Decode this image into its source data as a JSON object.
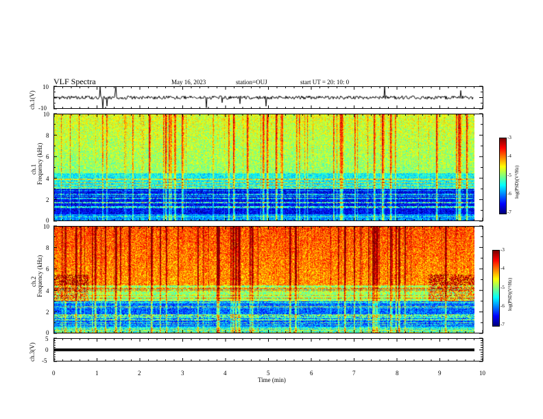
{
  "header": {
    "title": "VLF Spectra",
    "date": "May 16, 2023",
    "station": "station=OUJ",
    "start": "start UT =  20: 10: 0"
  },
  "chart_data": [
    {
      "type": "line",
      "panel": "ch1-waveform",
      "ylabel": "ch.1(V)",
      "ylim": [
        -10,
        10
      ],
      "yticks": [
        "10",
        "-10"
      ],
      "xlim": [
        0,
        10
      ],
      "baseline": 0
    },
    {
      "type": "heatmap",
      "panel": "ch1-spectrogram",
      "ylabel": "ch.1\nFrequency (kHz)",
      "ylim": [
        0,
        10
      ],
      "yticks": [
        "0",
        "2",
        "4",
        "6",
        "8",
        "10"
      ],
      "xlim": [
        0,
        10
      ],
      "data_end_min": 9.8,
      "colorbar": {
        "label": "log(PSD)(V²/Hz)",
        "range": [
          -7,
          -3
        ],
        "ticks": [
          "-3",
          "-4",
          "-5",
          "-6",
          "-7"
        ]
      }
    },
    {
      "type": "heatmap",
      "panel": "ch2-spectrogram",
      "ylabel": "ch.2\nFrequency (kHz)",
      "ylim": [
        0,
        10
      ],
      "yticks": [
        "0",
        "2",
        "4",
        "6",
        "8",
        "10"
      ],
      "xlim": [
        0,
        10
      ],
      "data_end_min": 9.8,
      "colorbar": {
        "label": "log(PSD)(V²/Hz)",
        "range": [
          -7,
          -3
        ],
        "ticks": [
          "-3",
          "-4",
          "-5",
          "-6",
          "-7"
        ]
      }
    },
    {
      "type": "line",
      "panel": "ch3-waveform",
      "ylabel": "ch.3(V)",
      "ylim": [
        -5,
        5
      ],
      "yticks": [
        "5",
        "0",
        "-5"
      ],
      "xlim": [
        0,
        10
      ],
      "xlabel": "Time (min)",
      "xticks": [
        "0",
        "1",
        "2",
        "3",
        "4",
        "5",
        "6",
        "7",
        "8",
        "9",
        "10"
      ],
      "baseline": 0
    }
  ],
  "colors": {
    "ch1_trace": "#000000",
    "ch3_trace": "#000000"
  }
}
